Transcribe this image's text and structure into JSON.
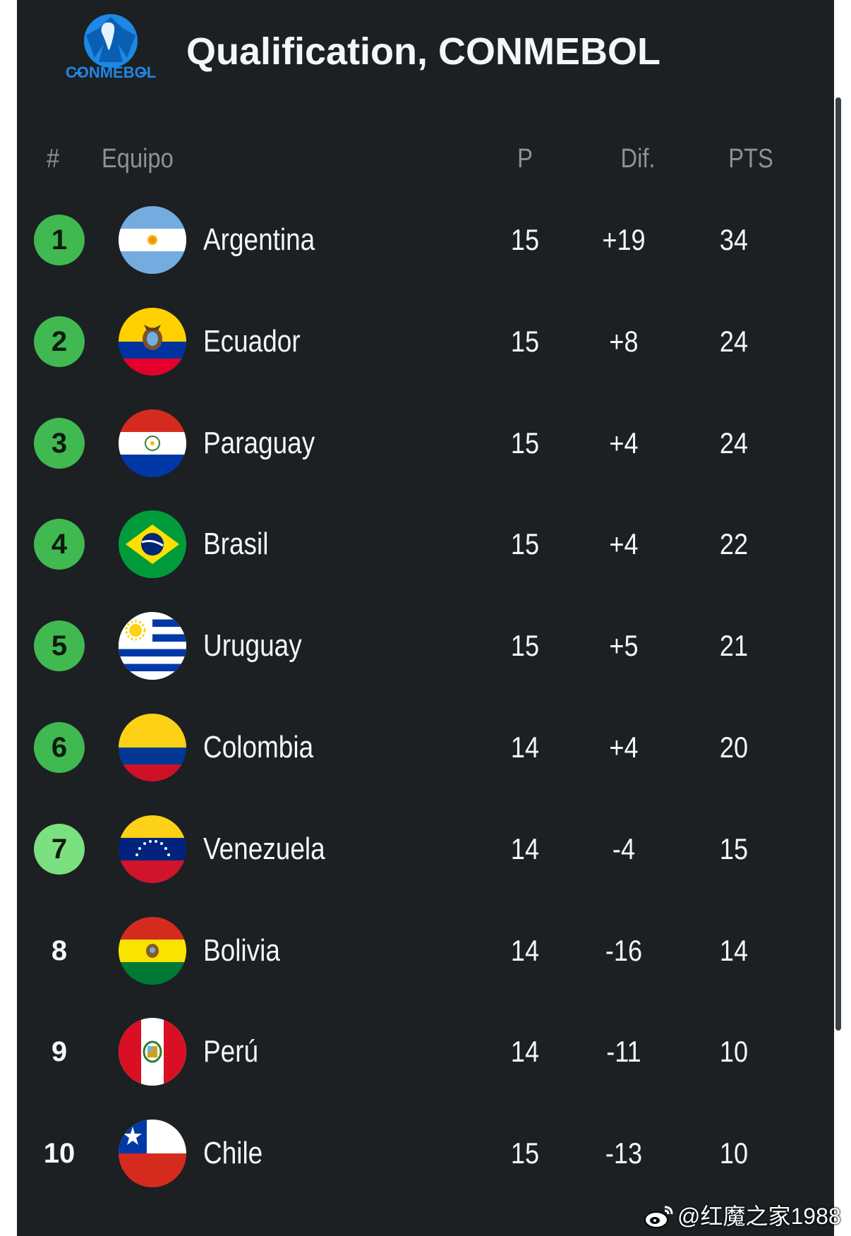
{
  "header": {
    "logo_text": "CONMEBOL",
    "title": "Qualification, CONMEBOL"
  },
  "columns": {
    "rank": "#",
    "team": "Equipo",
    "played": "P",
    "diff": "Dif.",
    "points": "PTS"
  },
  "rows": [
    {
      "rank": "1",
      "team": "Argentina",
      "p": "15",
      "dif": "+19",
      "pts": "34",
      "badge": "green",
      "flag": "argentina-flag-icon"
    },
    {
      "rank": "2",
      "team": "Ecuador",
      "p": "15",
      "dif": "+8",
      "pts": "24",
      "badge": "green",
      "flag": "ecuador-flag-icon"
    },
    {
      "rank": "3",
      "team": "Paraguay",
      "p": "15",
      "dif": "+4",
      "pts": "24",
      "badge": "green",
      "flag": "paraguay-flag-icon"
    },
    {
      "rank": "4",
      "team": "Brasil",
      "p": "15",
      "dif": "+4",
      "pts": "22",
      "badge": "green",
      "flag": "brazil-flag-icon"
    },
    {
      "rank": "5",
      "team": "Uruguay",
      "p": "15",
      "dif": "+5",
      "pts": "21",
      "badge": "green",
      "flag": "uruguay-flag-icon"
    },
    {
      "rank": "6",
      "team": "Colombia",
      "p": "14",
      "dif": "+4",
      "pts": "20",
      "badge": "green",
      "flag": "colombia-flag-icon"
    },
    {
      "rank": "7",
      "team": "Venezuela",
      "p": "14",
      "dif": "-4",
      "pts": "15",
      "badge": "light-green",
      "flag": "venezuela-flag-icon"
    },
    {
      "rank": "8",
      "team": "Bolivia",
      "p": "14",
      "dif": "-16",
      "pts": "14",
      "badge": "none",
      "flag": "bolivia-flag-icon"
    },
    {
      "rank": "9",
      "team": "Perú",
      "p": "14",
      "dif": "-11",
      "pts": "10",
      "badge": "none",
      "flag": "peru-flag-icon"
    },
    {
      "rank": "10",
      "team": "Chile",
      "p": "15",
      "dif": "-13",
      "pts": "10",
      "badge": "none",
      "flag": "chile-flag-icon"
    }
  ],
  "watermark": {
    "text": "@红魔之家1988",
    "icon": "weibo-icon"
  },
  "colors": {
    "background": "#1c2022",
    "badge_green": "#3fb950",
    "badge_light_green": "#7be07f",
    "header_text": "#8b9397",
    "logo_blue": "#1e88e5"
  }
}
